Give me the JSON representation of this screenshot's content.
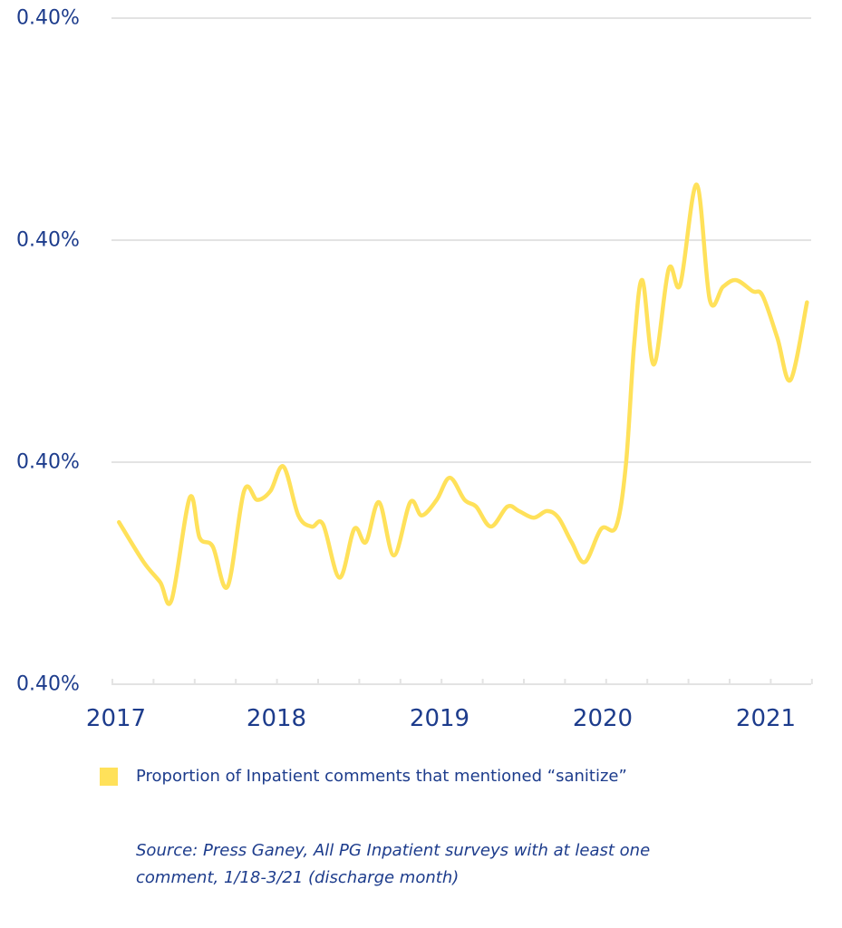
{
  "chart_data": {
    "type": "line",
    "title": "",
    "xlabel": "",
    "ylabel": "",
    "x_tick_labels": [
      "2017",
      "2018",
      "2019",
      "2020",
      "2021"
    ],
    "x_tick_values": [
      2017,
      2018,
      2019,
      2020,
      2021
    ],
    "xlim": [
      2017,
      2021.25
    ],
    "y_tick_labels": [
      "0.40%",
      "0.40%",
      "0.40%",
      "0.40%"
    ],
    "ylim": [
      0,
      3
    ],
    "grid": true,
    "legend_position": "bottom-left",
    "series": [
      {
        "name": "Proportion of Inpatient comments that mentioned “sanitize”",
        "color": "#ffe15a",
        "x": [
          2017.04,
          2017.19,
          2017.29,
          2017.36,
          2017.47,
          2017.53,
          2017.61,
          2017.7,
          2017.8,
          2017.88,
          2017.96,
          2018.04,
          2018.13,
          2018.21,
          2018.28,
          2018.38,
          2018.47,
          2018.54,
          2018.62,
          2018.71,
          2018.81,
          2018.88,
          2018.97,
          2019.05,
          2019.14,
          2019.21,
          2019.3,
          2019.4,
          2019.47,
          2019.56,
          2019.64,
          2019.71,
          2019.79,
          2019.87,
          2019.97,
          2020.06,
          2020.12,
          2020.17,
          2020.22,
          2020.29,
          2020.38,
          2020.45,
          2020.55,
          2020.63,
          2020.71,
          2020.79,
          2020.89,
          2020.95,
          2021.04,
          2021.12,
          2021.22
        ],
        "y": [
          0.73,
          0.55,
          0.46,
          0.38,
          0.84,
          0.66,
          0.62,
          0.44,
          0.87,
          0.83,
          0.87,
          0.98,
          0.76,
          0.71,
          0.72,
          0.48,
          0.7,
          0.64,
          0.82,
          0.58,
          0.82,
          0.76,
          0.83,
          0.93,
          0.83,
          0.8,
          0.71,
          0.8,
          0.78,
          0.75,
          0.78,
          0.75,
          0.64,
          0.55,
          0.7,
          0.71,
          0.99,
          1.53,
          1.82,
          1.44,
          1.87,
          1.8,
          2.25,
          1.73,
          1.79,
          1.82,
          1.77,
          1.75,
          1.56,
          1.37,
          1.72
        ]
      }
    ]
  },
  "legend": {
    "label": "Proportion of Inpatient comments that mentioned “sanitize”",
    "color": "#ffe15a"
  },
  "source": {
    "line1": "Source: Press Ganey, All PG Inpatient surveys with at least one",
    "line2": "comment, 1/18-3/21 (discharge month)"
  },
  "colors": {
    "text": "#1d3c8c",
    "grid": "#e3e3e3"
  }
}
